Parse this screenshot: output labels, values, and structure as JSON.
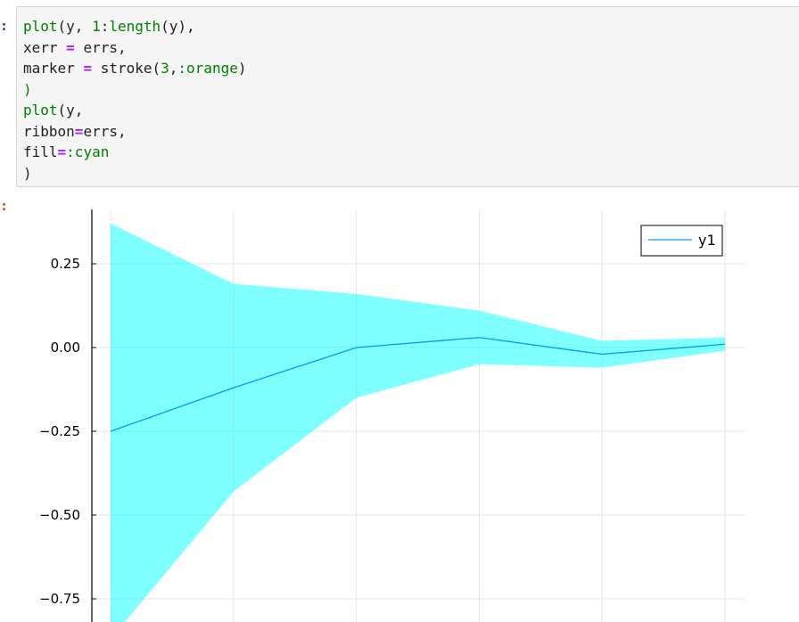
{
  "prompts": {
    "input": ":",
    "output": ":"
  },
  "code_lines": [
    [
      {
        "t": "plot",
        "c": "fn"
      },
      {
        "t": "(y, ",
        "c": ""
      },
      {
        "t": "1",
        "c": "num"
      },
      {
        "t": ":",
        "c": ""
      },
      {
        "t": "length",
        "c": "fn"
      },
      {
        "t": "(y),",
        "c": ""
      }
    ],
    [
      {
        "t": "xerr ",
        "c": ""
      },
      {
        "t": "=",
        "c": "op"
      },
      {
        "t": " errs,",
        "c": ""
      }
    ],
    [
      {
        "t": "marker ",
        "c": ""
      },
      {
        "t": "=",
        "c": "op"
      },
      {
        "t": " stroke(",
        "c": ""
      },
      {
        "t": "3",
        "c": "num"
      },
      {
        "t": ",",
        "c": ""
      },
      {
        "t": ":orange",
        "c": "sym"
      },
      {
        "t": ")",
        "c": ""
      }
    ],
    [
      {
        "t": ")",
        "c": "fn"
      }
    ],
    [
      {
        "t": "plot",
        "c": "fn"
      },
      {
        "t": "(y,",
        "c": ""
      }
    ],
    [
      {
        "t": "ribbon",
        "c": ""
      },
      {
        "t": "=",
        "c": "op"
      },
      {
        "t": "errs,",
        "c": ""
      }
    ],
    [
      {
        "t": "fill",
        "c": ""
      },
      {
        "t": "=",
        "c": "op"
      },
      {
        "t": ":cyan",
        "c": "sym"
      }
    ],
    [
      {
        "t": ")",
        "c": ""
      }
    ]
  ],
  "chart_data": {
    "type": "line",
    "x": [
      1,
      2,
      3,
      4,
      5,
      6
    ],
    "series": [
      {
        "name": "y1",
        "values": [
          -0.25,
          -0.12,
          0.0,
          0.03,
          -0.02,
          0.01
        ],
        "ribbon_upper": [
          0.37,
          0.19,
          0.16,
          0.11,
          0.02,
          0.03
        ],
        "ribbon_lower": [
          -0.87,
          -0.43,
          -0.15,
          -0.05,
          -0.06,
          -0.01
        ],
        "color": "#009af9",
        "fill_color": "#00ffff"
      }
    ],
    "yticks": [
      0.25,
      0.0,
      -0.25,
      -0.5,
      -0.75
    ],
    "ytick_labels": [
      "0.25",
      "0.00",
      "−0.25",
      "−0.50",
      "−0.75"
    ],
    "ylim": [
      -0.82,
      0.41
    ],
    "xlim": [
      0.85,
      6.15
    ],
    "grid": true,
    "legend": "top-right"
  }
}
